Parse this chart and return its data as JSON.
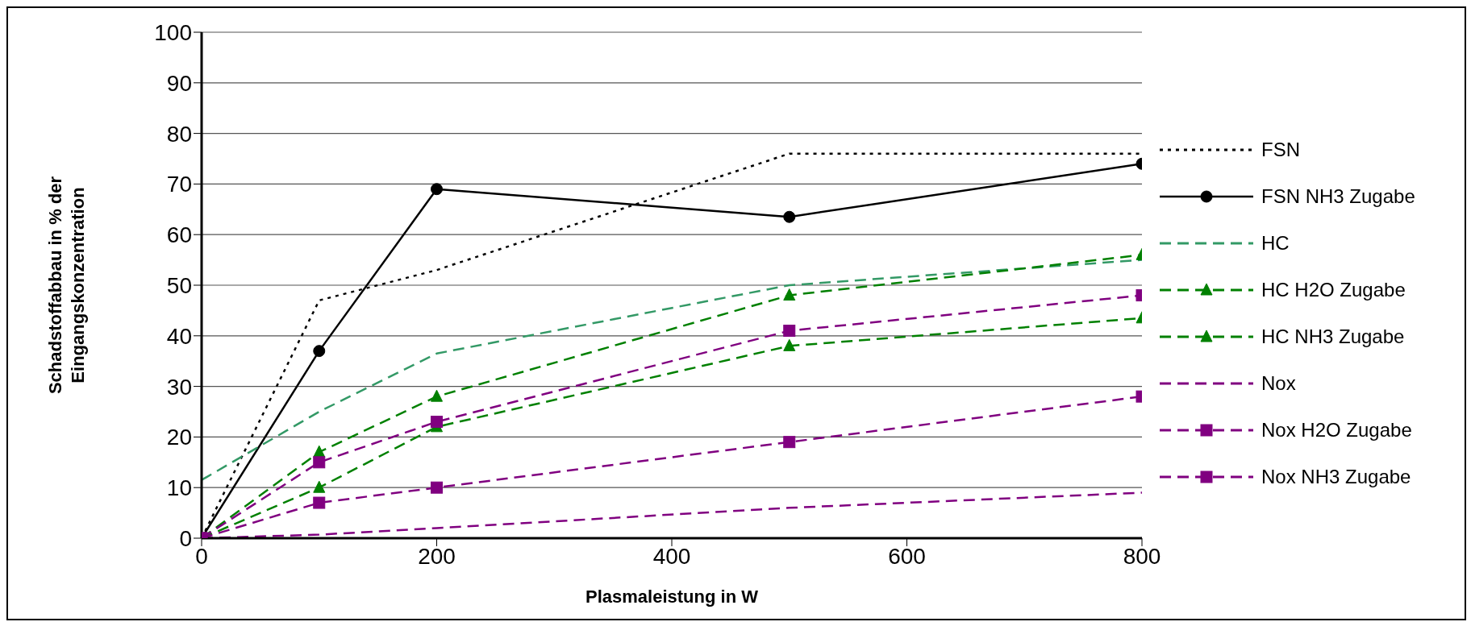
{
  "chart_data": {
    "type": "line",
    "xlabel": "Plasmaleistung in W",
    "ylabel": "Schadstoffabbau in % der Eingangskonzentration",
    "x": [
      0,
      100,
      200,
      500,
      800
    ],
    "xlim": [
      0,
      800
    ],
    "xticks": [
      0,
      200,
      400,
      600,
      800
    ],
    "ylim": [
      0,
      100
    ],
    "yticks": [
      0,
      10,
      20,
      30,
      40,
      50,
      60,
      70,
      80,
      90,
      100
    ],
    "grid": "y",
    "legend": "right",
    "series": [
      {
        "name": "FSN",
        "color": "#000000",
        "values": [
          0,
          47,
          53,
          76,
          76
        ],
        "marker": "none",
        "line_style": "dotted"
      },
      {
        "name": "FSN NH3 Zugabe",
        "color": "#000000",
        "values": [
          0,
          37,
          69,
          63.5,
          74
        ],
        "marker": "circle",
        "line_style": "solid"
      },
      {
        "name": "HC",
        "color": "#339966",
        "values": [
          11.5,
          25,
          36.5,
          50,
          55
        ],
        "marker": "none",
        "line_style": "dashed"
      },
      {
        "name": "HC H2O Zugabe",
        "color": "#008000",
        "values": [
          0,
          17,
          28,
          48,
          56
        ],
        "marker": "triangle",
        "line_style": "dashed"
      },
      {
        "name": "HC NH3 Zugabe",
        "color": "#008000",
        "values": [
          0,
          10,
          22,
          38,
          43.5
        ],
        "marker": "triangle",
        "line_style": "dashed"
      },
      {
        "name": "Nox",
        "color": "#800080",
        "values": [
          0,
          0.7,
          2,
          6,
          9
        ],
        "marker": "none",
        "line_style": "dashed"
      },
      {
        "name": "Nox H2O Zugabe",
        "color": "#800080",
        "values": [
          0,
          7,
          10,
          19,
          28
        ],
        "marker": "square",
        "line_style": "dashed"
      },
      {
        "name": "Nox NH3 Zugabe",
        "color": "#800080",
        "values": [
          0,
          15,
          23,
          41,
          48
        ],
        "marker": "square",
        "line_style": "dashed"
      }
    ]
  }
}
